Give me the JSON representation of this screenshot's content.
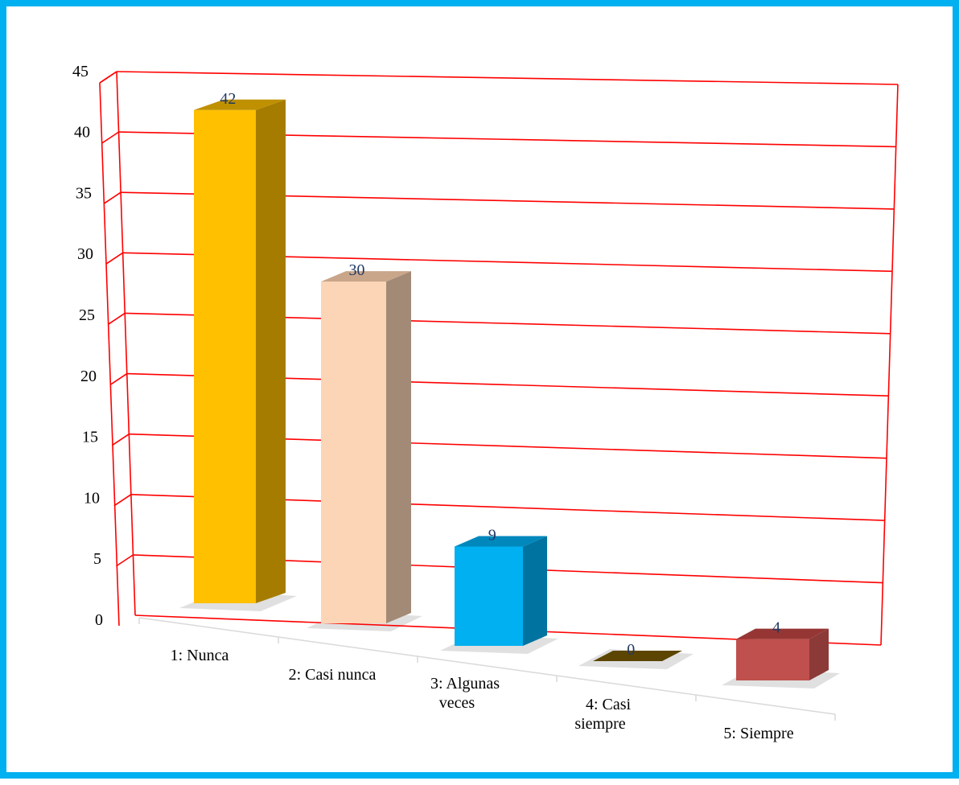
{
  "chart_data": {
    "type": "bar",
    "style": "3d-column",
    "categories": [
      "1: Nunca",
      "2: Casi nunca",
      "3: Algunas veces",
      "4: Casi siempre",
      "5: Siempre"
    ],
    "values": [
      42,
      30,
      9,
      0,
      4
    ],
    "data_labels": [
      "42",
      "30",
      "9",
      "0",
      "4"
    ],
    "y_ticks": [
      "0",
      "5",
      "10",
      "15",
      "20",
      "25",
      "30",
      "35",
      "40",
      "45"
    ],
    "ylim": [
      0,
      45
    ],
    "y_step": 5,
    "grid": true,
    "legend": "none",
    "title": "",
    "xlabel": "",
    "ylabel": "",
    "colors": {
      "frame_border": "#00b0f0",
      "gridlines": "#ff0000",
      "baseline": "#d9d9d9",
      "data_label_text": "#1f3864",
      "bars": [
        {
          "front": "#ffc000",
          "side": "#a67c00",
          "top": "#bf9000"
        },
        {
          "front": "#fbd5b5",
          "side": "#a38a76",
          "top": "#c9a68a"
        },
        {
          "front": "#00b0f0",
          "side": "#0073a0",
          "top": "#0088bd"
        },
        {
          "front": "#7f6000",
          "side": "#5c4500",
          "top": "#4d3a00"
        },
        {
          "front": "#c0504d",
          "side": "#8b3a38",
          "top": "#963634"
        }
      ]
    }
  }
}
